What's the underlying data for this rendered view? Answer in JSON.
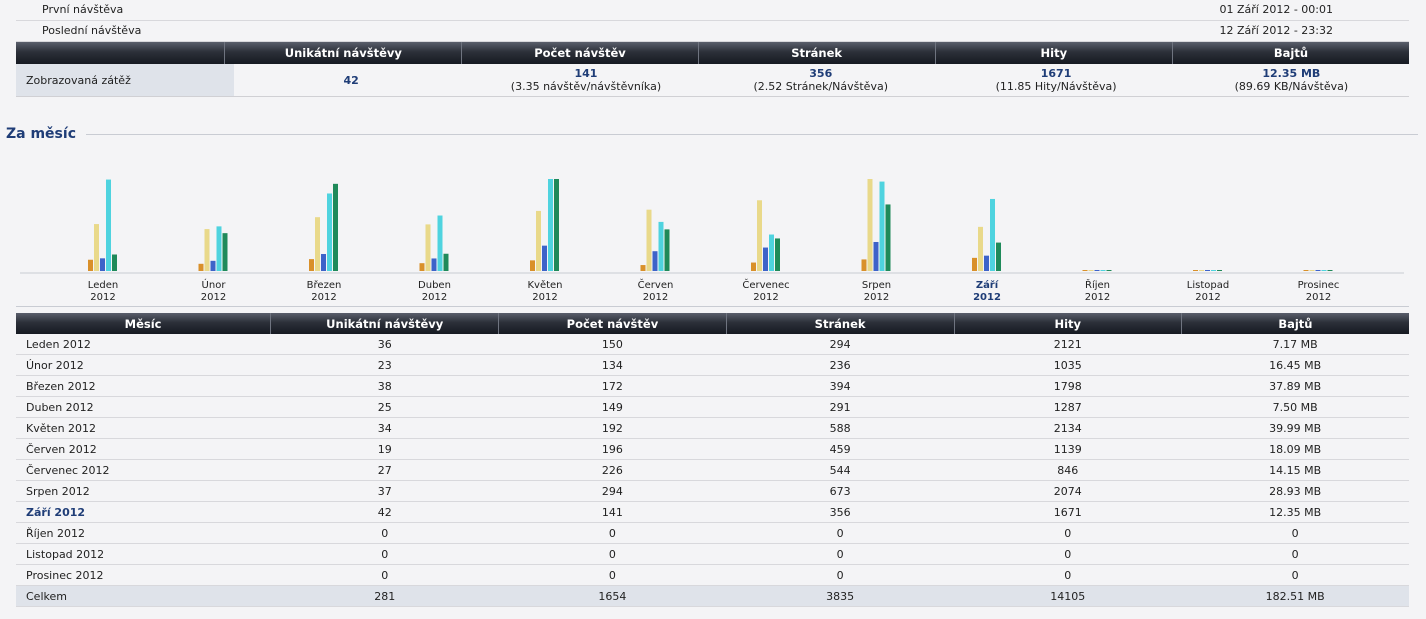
{
  "summary": {
    "first_visit_label": "První návštěva",
    "first_visit_value": "01 Září 2012 - 00:01",
    "last_visit_label": "Poslední návštěva",
    "last_visit_value": "12 Září 2012 - 23:32",
    "headers": [
      "Unikátní návštěvy",
      "Počet návštěv",
      "Stránek",
      "Hity",
      "Bajtů"
    ],
    "row_label": "Zobrazovaná zátěž",
    "values": [
      {
        "main": "42",
        "sub": ""
      },
      {
        "main": "141",
        "sub": "(3.35 návštěv/návštěvníka)"
      },
      {
        "main": "356",
        "sub": "(2.52 Stránek/Návštěva)"
      },
      {
        "main": "1671",
        "sub": "(11.85 Hity/Návštěva)"
      },
      {
        "main": "12.35 MB",
        "sub": "(89.69 KB/Návštěva)"
      }
    ]
  },
  "section_title": "Za měsíc",
  "colors": {
    "unique": "#d9902a",
    "visits": "#e9d98a",
    "pages": "#3d63c9",
    "hits": "#4fd3df",
    "bytes": "#1f8a5a",
    "accent": "#1f3d77"
  },
  "chart_data": {
    "type": "bar",
    "categories": [
      "Leden 2012",
      "Únor 2012",
      "Březen 2012",
      "Duben 2012",
      "Květen 2012",
      "Červen 2012",
      "Červenec 2012",
      "Srpen 2012",
      "Září 2012",
      "Říjen 2012",
      "Listopad 2012",
      "Prosinec 2012"
    ],
    "labels": [
      {
        "month": "Leden",
        "year": "2012"
      },
      {
        "month": "Únor",
        "year": "2012"
      },
      {
        "month": "Březen",
        "year": "2012"
      },
      {
        "month": "Duben",
        "year": "2012"
      },
      {
        "month": "Květen",
        "year": "2012"
      },
      {
        "month": "Červen",
        "year": "2012"
      },
      {
        "month": "Červenec",
        "year": "2012"
      },
      {
        "month": "Srpen",
        "year": "2012"
      },
      {
        "month": "Září",
        "year": "2012"
      },
      {
        "month": "Říjen",
        "year": "2012"
      },
      {
        "month": "Listopad",
        "year": "2012"
      },
      {
        "month": "Prosinec",
        "year": "2012"
      }
    ],
    "current_index": 8,
    "series": [
      {
        "name": "Unikátní návštěvy",
        "values": [
          36,
          23,
          38,
          25,
          34,
          19,
          27,
          37,
          42,
          0,
          0,
          0
        ]
      },
      {
        "name": "Počet návštěv",
        "values": [
          150,
          134,
          172,
          149,
          192,
          196,
          226,
          294,
          141,
          0,
          0,
          0
        ]
      },
      {
        "name": "Stránek",
        "values": [
          294,
          236,
          394,
          291,
          588,
          459,
          544,
          673,
          356,
          0,
          0,
          0
        ]
      },
      {
        "name": "Hity",
        "values": [
          2121,
          1035,
          1798,
          1287,
          2134,
          1139,
          846,
          2074,
          1671,
          0,
          0,
          0
        ]
      },
      {
        "name": "Bajtů (MB)",
        "values": [
          7.17,
          16.45,
          37.89,
          7.5,
          39.99,
          18.09,
          14.15,
          28.93,
          12.35,
          0,
          0,
          0
        ]
      }
    ]
  },
  "table": {
    "headers": [
      "Měsíc",
      "Unikátní návštěvy",
      "Počet návštěv",
      "Stránek",
      "Hity",
      "Bajtů"
    ],
    "rows": [
      [
        "Leden 2012",
        "36",
        "150",
        "294",
        "2121",
        "7.17 MB"
      ],
      [
        "Únor 2012",
        "23",
        "134",
        "236",
        "1035",
        "16.45 MB"
      ],
      [
        "Březen 2012",
        "38",
        "172",
        "394",
        "1798",
        "37.89 MB"
      ],
      [
        "Duben 2012",
        "25",
        "149",
        "291",
        "1287",
        "7.50 MB"
      ],
      [
        "Květen 2012",
        "34",
        "192",
        "588",
        "2134",
        "39.99 MB"
      ],
      [
        "Červen 2012",
        "19",
        "196",
        "459",
        "1139",
        "18.09 MB"
      ],
      [
        "Červenec 2012",
        "27",
        "226",
        "544",
        "846",
        "14.15 MB"
      ],
      [
        "Srpen 2012",
        "37",
        "294",
        "673",
        "2074",
        "28.93 MB"
      ],
      [
        "Září 2012",
        "42",
        "141",
        "356",
        "1671",
        "12.35 MB"
      ],
      [
        "Říjen 2012",
        "0",
        "0",
        "0",
        "0",
        "0"
      ],
      [
        "Listopad 2012",
        "0",
        "0",
        "0",
        "0",
        "0"
      ],
      [
        "Prosinec 2012",
        "0",
        "0",
        "0",
        "0",
        "0"
      ]
    ],
    "total": [
      "Celkem",
      "281",
      "1654",
      "3835",
      "14105",
      "182.51 MB"
    ]
  }
}
